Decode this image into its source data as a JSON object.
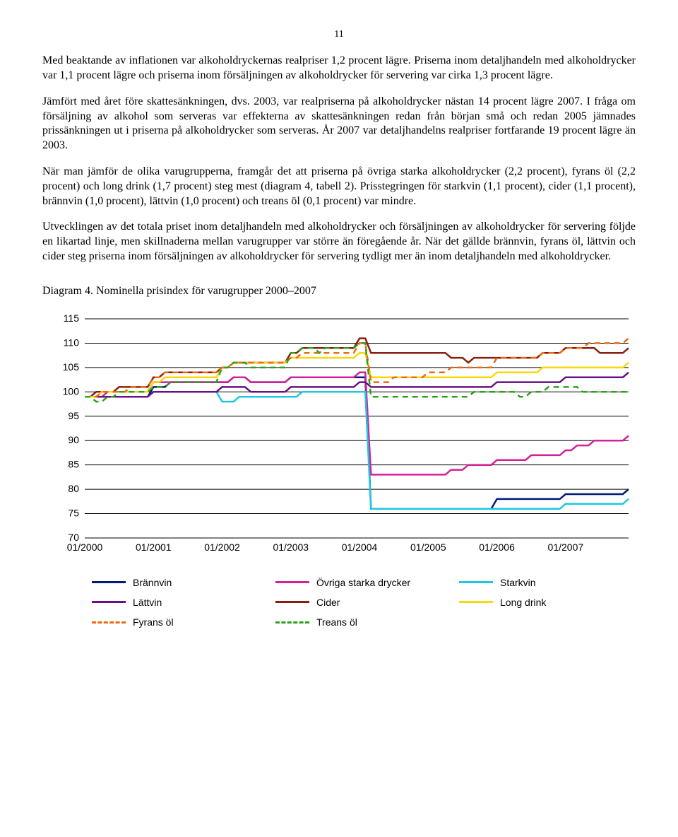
{
  "page_number": "11",
  "paragraphs": {
    "p1": "Med beaktande av inflationen var alkoholdryckernas realpriser 1,2 procent lägre. Priserna inom detaljhandeln med alkoholdrycker var 1,1 procent lägre och priserna inom försäljningen av alkoholdrycker för servering var cirka 1,3 procent lägre.",
    "p2": "Jämfört med året före skattesänkningen, dvs. 2003, var realpriserna på alkoholdrycker nästan 14 procent lägre 2007. I fråga om försäljning av alkohol som serveras var effekterna av skattesänkningen redan från början små och redan 2005 jämnades prissänkningen ut i priserna på alkoholdrycker som serveras. År 2007 var detaljhandelns realpriser fortfarande 19 procent lägre än 2003.",
    "p3": "När man jämför de olika varugrupperna, framgår det att priserna på övriga starka alkoholdrycker (2,2 procent), fyrans öl (2,2 procent) och long drink (1,7 procent) steg mest (diagram 4, tabell 2). Prisstegringen för starkvin (1,1 procent), cider (1,1 procent), brännvin (1,0 procent), lättvin (1,0 procent) och treans öl (0,1 procent) var mindre.",
    "p4": "Utvecklingen av det totala priset inom detaljhandeln med alkoholdrycker och försäljningen av alkoholdrycker för servering följde en likartad linje, men skillnaderna mellan varugrupper var större än föregående år. När det gällde brännvin, fyrans öl, lättvin och cider steg priserna inom försäljningen av alkoholdrycker för servering tydligt mer än inom detaljhandeln med alkoholdrycker."
  },
  "chart_title": "Diagram 4. Nominella prisindex för varugrupper 2000–2007",
  "chart": {
    "type": "line",
    "background_color": "#ffffff",
    "grid_color": "#000000",
    "x_labels": [
      "01/2000",
      "01/2001",
      "01/2002",
      "01/2003",
      "01/2004",
      "01/2005",
      "01/2006",
      "01/2007"
    ],
    "ylim": [
      70,
      115
    ],
    "ytick_step": 5,
    "line_width": 2.5,
    "series": [
      {
        "name": "Brännvin",
        "color": "#001b7a",
        "dash": "solid",
        "data": [
          99,
          99,
          99,
          99,
          99,
          99,
          99,
          99,
          99,
          99,
          99,
          99,
          101,
          101,
          101,
          102,
          102,
          102,
          102,
          102,
          102,
          102,
          102,
          102,
          102,
          102,
          103,
          103,
          103,
          102,
          102,
          102,
          102,
          102,
          102,
          102,
          103,
          103,
          103,
          103,
          103,
          103,
          103,
          103,
          103,
          103,
          103,
          103,
          103,
          103,
          76,
          76,
          76,
          76,
          76,
          76,
          76,
          76,
          76,
          76,
          76,
          76,
          76,
          76,
          76,
          76,
          76,
          76,
          76,
          76,
          76,
          76,
          78,
          78,
          78,
          78,
          78,
          78,
          78,
          78,
          78,
          78,
          78,
          78,
          79,
          79,
          79,
          79,
          79,
          79,
          79,
          79,
          79,
          79,
          79,
          80
        ]
      },
      {
        "name": "Övriga starka drycker",
        "color": "#d3209b",
        "dash": "solid",
        "data": [
          99,
          99,
          99,
          99,
          100,
          100,
          100,
          100,
          100,
          100,
          100,
          100,
          102,
          102,
          102,
          102,
          102,
          102,
          102,
          102,
          102,
          102,
          102,
          102,
          102,
          102,
          103,
          103,
          103,
          102,
          102,
          102,
          102,
          102,
          102,
          102,
          103,
          103,
          103,
          103,
          103,
          103,
          103,
          103,
          103,
          103,
          103,
          103,
          104,
          104,
          83,
          83,
          83,
          83,
          83,
          83,
          83,
          83,
          83,
          83,
          83,
          83,
          83,
          83,
          84,
          84,
          84,
          85,
          85,
          85,
          85,
          85,
          86,
          86,
          86,
          86,
          86,
          86,
          87,
          87,
          87,
          87,
          87,
          87,
          88,
          88,
          89,
          89,
          89,
          90,
          90,
          90,
          90,
          90,
          90,
          91
        ]
      },
      {
        "name": "Starkvin",
        "color": "#1dc8e0",
        "dash": "solid",
        "data": [
          99,
          99,
          99,
          99,
          99,
          99,
          99,
          99,
          99,
          99,
          99,
          99,
          100,
          100,
          100,
          100,
          100,
          100,
          100,
          100,
          100,
          100,
          100,
          100,
          98,
          98,
          98,
          99,
          99,
          99,
          99,
          99,
          99,
          99,
          99,
          99,
          99,
          99,
          100,
          100,
          100,
          100,
          100,
          100,
          100,
          100,
          100,
          100,
          100,
          100,
          76,
          76,
          76,
          76,
          76,
          76,
          76,
          76,
          76,
          76,
          76,
          76,
          76,
          76,
          76,
          76,
          76,
          76,
          76,
          76,
          76,
          76,
          76,
          76,
          76,
          76,
          76,
          76,
          76,
          76,
          76,
          76,
          76,
          76,
          77,
          77,
          77,
          77,
          77,
          77,
          77,
          77,
          77,
          77,
          77,
          78
        ]
      },
      {
        "name": "Lättvin",
        "color": "#6a0f87",
        "dash": "solid",
        "data": [
          99,
          99,
          99,
          99,
          99,
          99,
          99,
          99,
          99,
          99,
          99,
          99,
          100,
          100,
          100,
          100,
          100,
          100,
          100,
          100,
          100,
          100,
          100,
          100,
          101,
          101,
          101,
          101,
          101,
          100,
          100,
          100,
          100,
          100,
          100,
          100,
          101,
          101,
          101,
          101,
          101,
          101,
          101,
          101,
          101,
          101,
          101,
          101,
          102,
          102,
          101,
          101,
          101,
          101,
          101,
          101,
          101,
          101,
          101,
          101,
          101,
          101,
          101,
          101,
          101,
          101,
          101,
          101,
          101,
          101,
          101,
          101,
          102,
          102,
          102,
          102,
          102,
          102,
          102,
          102,
          102,
          102,
          102,
          102,
          103,
          103,
          103,
          103,
          103,
          103,
          103,
          103,
          103,
          103,
          103,
          104
        ]
      },
      {
        "name": "Cider",
        "color": "#8a1d0f",
        "dash": "solid",
        "data": [
          99,
          99,
          100,
          100,
          100,
          100,
          101,
          101,
          101,
          101,
          101,
          101,
          103,
          103,
          104,
          104,
          104,
          104,
          104,
          104,
          104,
          104,
          104,
          104,
          105,
          105,
          106,
          106,
          106,
          106,
          106,
          106,
          106,
          106,
          106,
          106,
          108,
          108,
          109,
          109,
          109,
          109,
          109,
          109,
          109,
          109,
          109,
          109,
          111,
          111,
          108,
          108,
          108,
          108,
          108,
          108,
          108,
          108,
          108,
          108,
          108,
          108,
          108,
          108,
          107,
          107,
          107,
          106,
          107,
          107,
          107,
          107,
          107,
          107,
          107,
          107,
          107,
          107,
          107,
          107,
          108,
          108,
          108,
          108,
          109,
          109,
          109,
          109,
          109,
          109,
          108,
          108,
          108,
          108,
          108,
          109
        ]
      },
      {
        "name": "Long drink",
        "color": "#f7d90a",
        "dash": "solid",
        "data": [
          99,
          99,
          99,
          100,
          100,
          100,
          100,
          100,
          100,
          100,
          100,
          100,
          102,
          102,
          103,
          103,
          103,
          103,
          103,
          103,
          103,
          103,
          103,
          103,
          105,
          105,
          106,
          106,
          106,
          106,
          106,
          106,
          106,
          106,
          106,
          106,
          107,
          107,
          107,
          107,
          107,
          107,
          107,
          107,
          107,
          107,
          107,
          107,
          108,
          108,
          103,
          103,
          103,
          103,
          103,
          103,
          103,
          103,
          103,
          103,
          103,
          103,
          103,
          103,
          103,
          103,
          103,
          103,
          103,
          103,
          103,
          103,
          104,
          104,
          104,
          104,
          104,
          104,
          104,
          104,
          105,
          105,
          105,
          105,
          105,
          105,
          105,
          105,
          105,
          105,
          105,
          105,
          105,
          105,
          105,
          106
        ]
      },
      {
        "name": "Fyrans öl",
        "color": "#ed6a0c",
        "dash": "dashed",
        "data": [
          99,
          99,
          99,
          100,
          100,
          100,
          100,
          100,
          101,
          101,
          101,
          101,
          103,
          103,
          104,
          104,
          104,
          104,
          104,
          104,
          104,
          104,
          104,
          104,
          105,
          105,
          106,
          106,
          106,
          106,
          106,
          106,
          106,
          106,
          106,
          106,
          107,
          107,
          108,
          108,
          108,
          108,
          108,
          108,
          108,
          108,
          108,
          108,
          110,
          110,
          102,
          102,
          102,
          102,
          103,
          103,
          103,
          103,
          103,
          103,
          104,
          104,
          104,
          104,
          105,
          105,
          105,
          105,
          105,
          105,
          105,
          105,
          107,
          107,
          107,
          107,
          107,
          107,
          107,
          107,
          108,
          108,
          108,
          108,
          109,
          109,
          109,
          109,
          110,
          110,
          110,
          110,
          110,
          110,
          110,
          111
        ]
      },
      {
        "name": "Treans öl",
        "color": "#2aa319",
        "dash": "dashed",
        "data": [
          99,
          99,
          98,
          98,
          99,
          99,
          100,
          100,
          100,
          100,
          100,
          100,
          101,
          101,
          101,
          102,
          102,
          102,
          102,
          102,
          102,
          102,
          102,
          102,
          105,
          105,
          106,
          106,
          106,
          105,
          105,
          105,
          105,
          105,
          105,
          105,
          108,
          108,
          109,
          109,
          109,
          108,
          109,
          109,
          109,
          109,
          109,
          109,
          110,
          110,
          99,
          99,
          99,
          99,
          99,
          99,
          99,
          99,
          99,
          99,
          99,
          99,
          99,
          99,
          99,
          99,
          99,
          99,
          100,
          100,
          100,
          100,
          100,
          100,
          100,
          100,
          99,
          99,
          100,
          100,
          100,
          101,
          101,
          101,
          101,
          101,
          101,
          100,
          100,
          100,
          100,
          100,
          100,
          100,
          100,
          100
        ]
      }
    ]
  }
}
